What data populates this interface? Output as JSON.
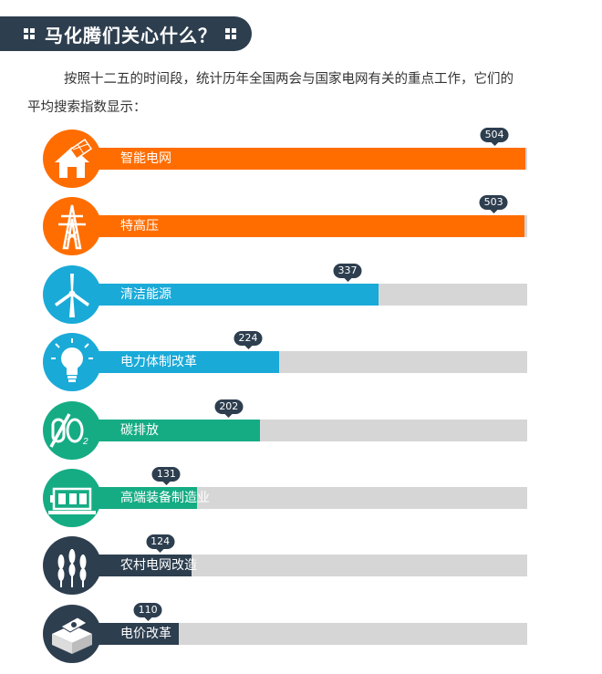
{
  "header": {
    "title": "马化腾们关心什么？"
  },
  "intro": {
    "line1": "按照十二五的时间段，统计历年全国两会与国家电网有关的重点工作，它们的",
    "line2": "平均搜索指数显示："
  },
  "chart_data": {
    "type": "bar",
    "orientation": "horizontal",
    "categories": [
      "智能电网",
      "特高压",
      "清洁能源",
      "电力体制改革",
      "碳排放",
      "高端装备制造业",
      "农村电网改造",
      "电价改革"
    ],
    "values": [
      504,
      503,
      337,
      224,
      202,
      131,
      124,
      110
    ],
    "xlim": [
      0,
      506
    ],
    "colors": [
      "#ff6d00",
      "#ff6d00",
      "#1aaad8",
      "#1aaad8",
      "#15ac84",
      "#15ac84",
      "#2d3e4f",
      "#2d3e4f"
    ],
    "icons": [
      "house-solar-icon",
      "transmission-tower-icon",
      "wind-turbine-icon",
      "light-bulb-icon",
      "co2-icon",
      "motor-machine-icon",
      "wheat-icon",
      "money-stack-icon"
    ],
    "track_color": "#d6d6d6",
    "data_labels": true,
    "grid": false
  }
}
